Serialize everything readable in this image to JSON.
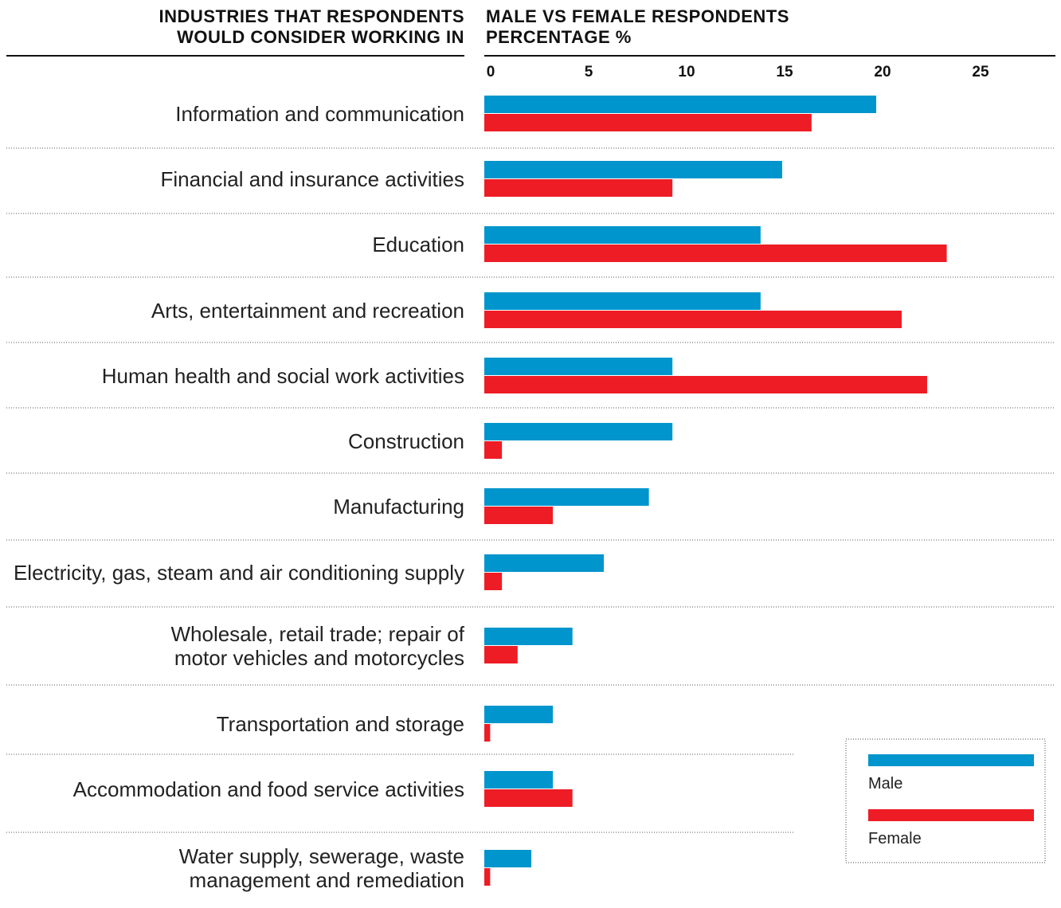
{
  "chart_data": {
    "type": "barh",
    "ylabel": "INDUSTRIES THAT RESPONDENTS WOULD CONSIDER WORKING IN",
    "title": "MALE VS FEMALE RESPONDENTS",
    "xlabel": "PERCENTAGE %",
    "categories": [
      "Information and communication",
      "Financial and insurance activities",
      "Education",
      "Arts, entertainment and recreation",
      "Human health and social work activities",
      "Construction",
      "Manufacturing",
      "Electricity, gas, steam and air conditioning supply",
      "Wholesale, retail trade; repair of motor vehicles and motorcycles",
      "Transportation and storage",
      "Accommodation and food service activities",
      "Water supply, sewerage, waste management and remediation"
    ],
    "series": [
      {
        "name": "Male",
        "color": "#0095cc",
        "values": [
          20,
          15.2,
          14.1,
          14.1,
          9.6,
          9.6,
          8.4,
          6.1,
          4.5,
          3.5,
          3.5,
          2.4
        ]
      },
      {
        "name": "Female",
        "color": "#ee1c25",
        "values": [
          16.7,
          9.6,
          23.6,
          21.3,
          22.6,
          0.9,
          3.5,
          0.9,
          1.7,
          0.3,
          4.5,
          0.3
        ]
      }
    ],
    "xlim": [
      0,
      29
    ],
    "xticks": [
      0,
      5,
      10,
      15,
      20,
      25
    ],
    "legend": "lower right"
  }
}
